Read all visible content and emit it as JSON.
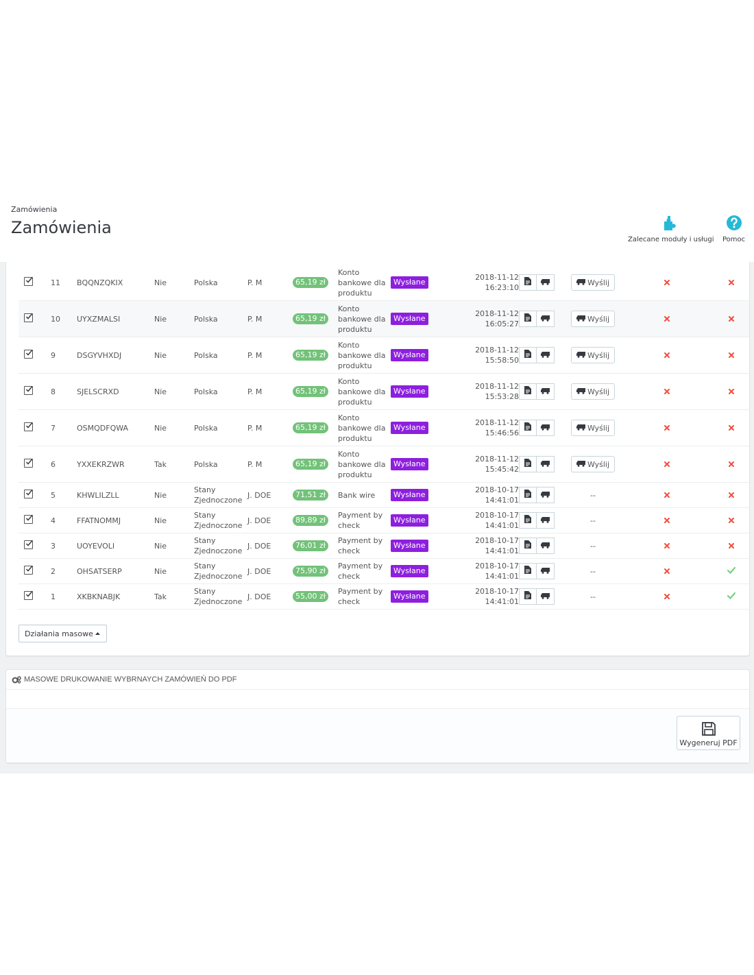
{
  "header": {
    "breadcrumb": "Zamówienia",
    "title": "Zamówienia",
    "toolbar": [
      {
        "label": "Zalecane moduły i usługi",
        "icon": "puzzle-icon"
      },
      {
        "label": "Pomoc",
        "icon": "help-icon"
      }
    ]
  },
  "colors": {
    "accent": "#25b9d7",
    "price_badge": "#72c279",
    "status_badge": "#8d1fde",
    "cross": "#f54c3e",
    "check": "#78d07d"
  },
  "orders": [
    {
      "id": "11",
      "ref": "BQQNZQKIX",
      "new": "Nie",
      "country": "Polska",
      "customer": "P. M",
      "total": "65,19 zł",
      "payment": "Konto bankowe dla produktu",
      "status": "Wysłane",
      "date": "2018-11-12",
      "time": "16:23:10",
      "send": "Wyślij",
      "flag1": "cross",
      "flag2": "cross"
    },
    {
      "id": "10",
      "ref": "UYXZMALSI",
      "new": "Nie",
      "country": "Polska",
      "customer": "P. M",
      "total": "65,19 zł",
      "payment": "Konto bankowe dla produktu",
      "status": "Wysłane",
      "date": "2018-11-12",
      "time": "16:05:27",
      "send": "Wyślij",
      "flag1": "cross",
      "flag2": "cross"
    },
    {
      "id": "9",
      "ref": "DSGYVHXDJ",
      "new": "Nie",
      "country": "Polska",
      "customer": "P. M",
      "total": "65,19 zł",
      "payment": "Konto bankowe dla produktu",
      "status": "Wysłane",
      "date": "2018-11-12",
      "time": "15:58:50",
      "send": "Wyślij",
      "flag1": "cross",
      "flag2": "cross"
    },
    {
      "id": "8",
      "ref": "SJELSCRXD",
      "new": "Nie",
      "country": "Polska",
      "customer": "P. M",
      "total": "65,19 zł",
      "payment": "Konto bankowe dla produktu",
      "status": "Wysłane",
      "date": "2018-11-12",
      "time": "15:53:28",
      "send": "Wyślij",
      "flag1": "cross",
      "flag2": "cross"
    },
    {
      "id": "7",
      "ref": "OSMQDFQWA",
      "new": "Nie",
      "country": "Polska",
      "customer": "P. M",
      "total": "65,19 zł",
      "payment": "Konto bankowe dla produktu",
      "status": "Wysłane",
      "date": "2018-11-12",
      "time": "15:46:56",
      "send": "Wyślij",
      "flag1": "cross",
      "flag2": "cross"
    },
    {
      "id": "6",
      "ref": "YXXEKRZWR",
      "new": "Tak",
      "country": "Polska",
      "customer": "P. M",
      "total": "65,19 zł",
      "payment": "Konto bankowe dla produktu",
      "status": "Wysłane",
      "date": "2018-11-12",
      "time": "15:45:42",
      "send": "Wyślij",
      "flag1": "cross",
      "flag2": "cross"
    },
    {
      "id": "5",
      "ref": "KHWLILZLL",
      "new": "Nie",
      "country": "Stany Zjednoczone",
      "customer": "J. DOE",
      "total": "71,51 zł",
      "payment": "Bank wire",
      "status": "Wysłane",
      "date": "2018-10-17",
      "time": "14:41:01",
      "send": "--",
      "flag1": "cross",
      "flag2": "cross"
    },
    {
      "id": "4",
      "ref": "FFATNOMMJ",
      "new": "Nie",
      "country": "Stany Zjednoczone",
      "customer": "J. DOE",
      "total": "89,89 zł",
      "payment": "Payment by check",
      "status": "Wysłane",
      "date": "2018-10-17",
      "time": "14:41:01",
      "send": "--",
      "flag1": "cross",
      "flag2": "cross"
    },
    {
      "id": "3",
      "ref": "UOYEVOLI",
      "new": "Nie",
      "country": "Stany Zjednoczone",
      "customer": "J. DOE",
      "total": "76,01 zł",
      "payment": "Payment by check",
      "status": "Wysłane",
      "date": "2018-10-17",
      "time": "14:41:01",
      "send": "--",
      "flag1": "cross",
      "flag2": "cross"
    },
    {
      "id": "2",
      "ref": "OHSATSERP",
      "new": "Nie",
      "country": "Stany Zjednoczone",
      "customer": "J. DOE",
      "total": "75,90 zł",
      "payment": "Payment by check",
      "status": "Wysłane",
      "date": "2018-10-17",
      "time": "14:41:01",
      "send": "--",
      "flag1": "cross",
      "flag2": "check"
    },
    {
      "id": "1",
      "ref": "XKBKNABJK",
      "new": "Tak",
      "country": "Stany Zjednoczone",
      "customer": "J. DOE",
      "total": "55,00 zł",
      "payment": "Payment by check",
      "status": "Wysłane",
      "date": "2018-10-17",
      "time": "14:41:01",
      "send": "--",
      "flag1": "cross",
      "flag2": "check"
    }
  ],
  "bulk_actions": {
    "label": "Działania masowe"
  },
  "pdf_panel": {
    "title": "Masowe drukowanie wybrnaych zamówień do PDF",
    "button_label": "Wygeneruj PDF"
  }
}
